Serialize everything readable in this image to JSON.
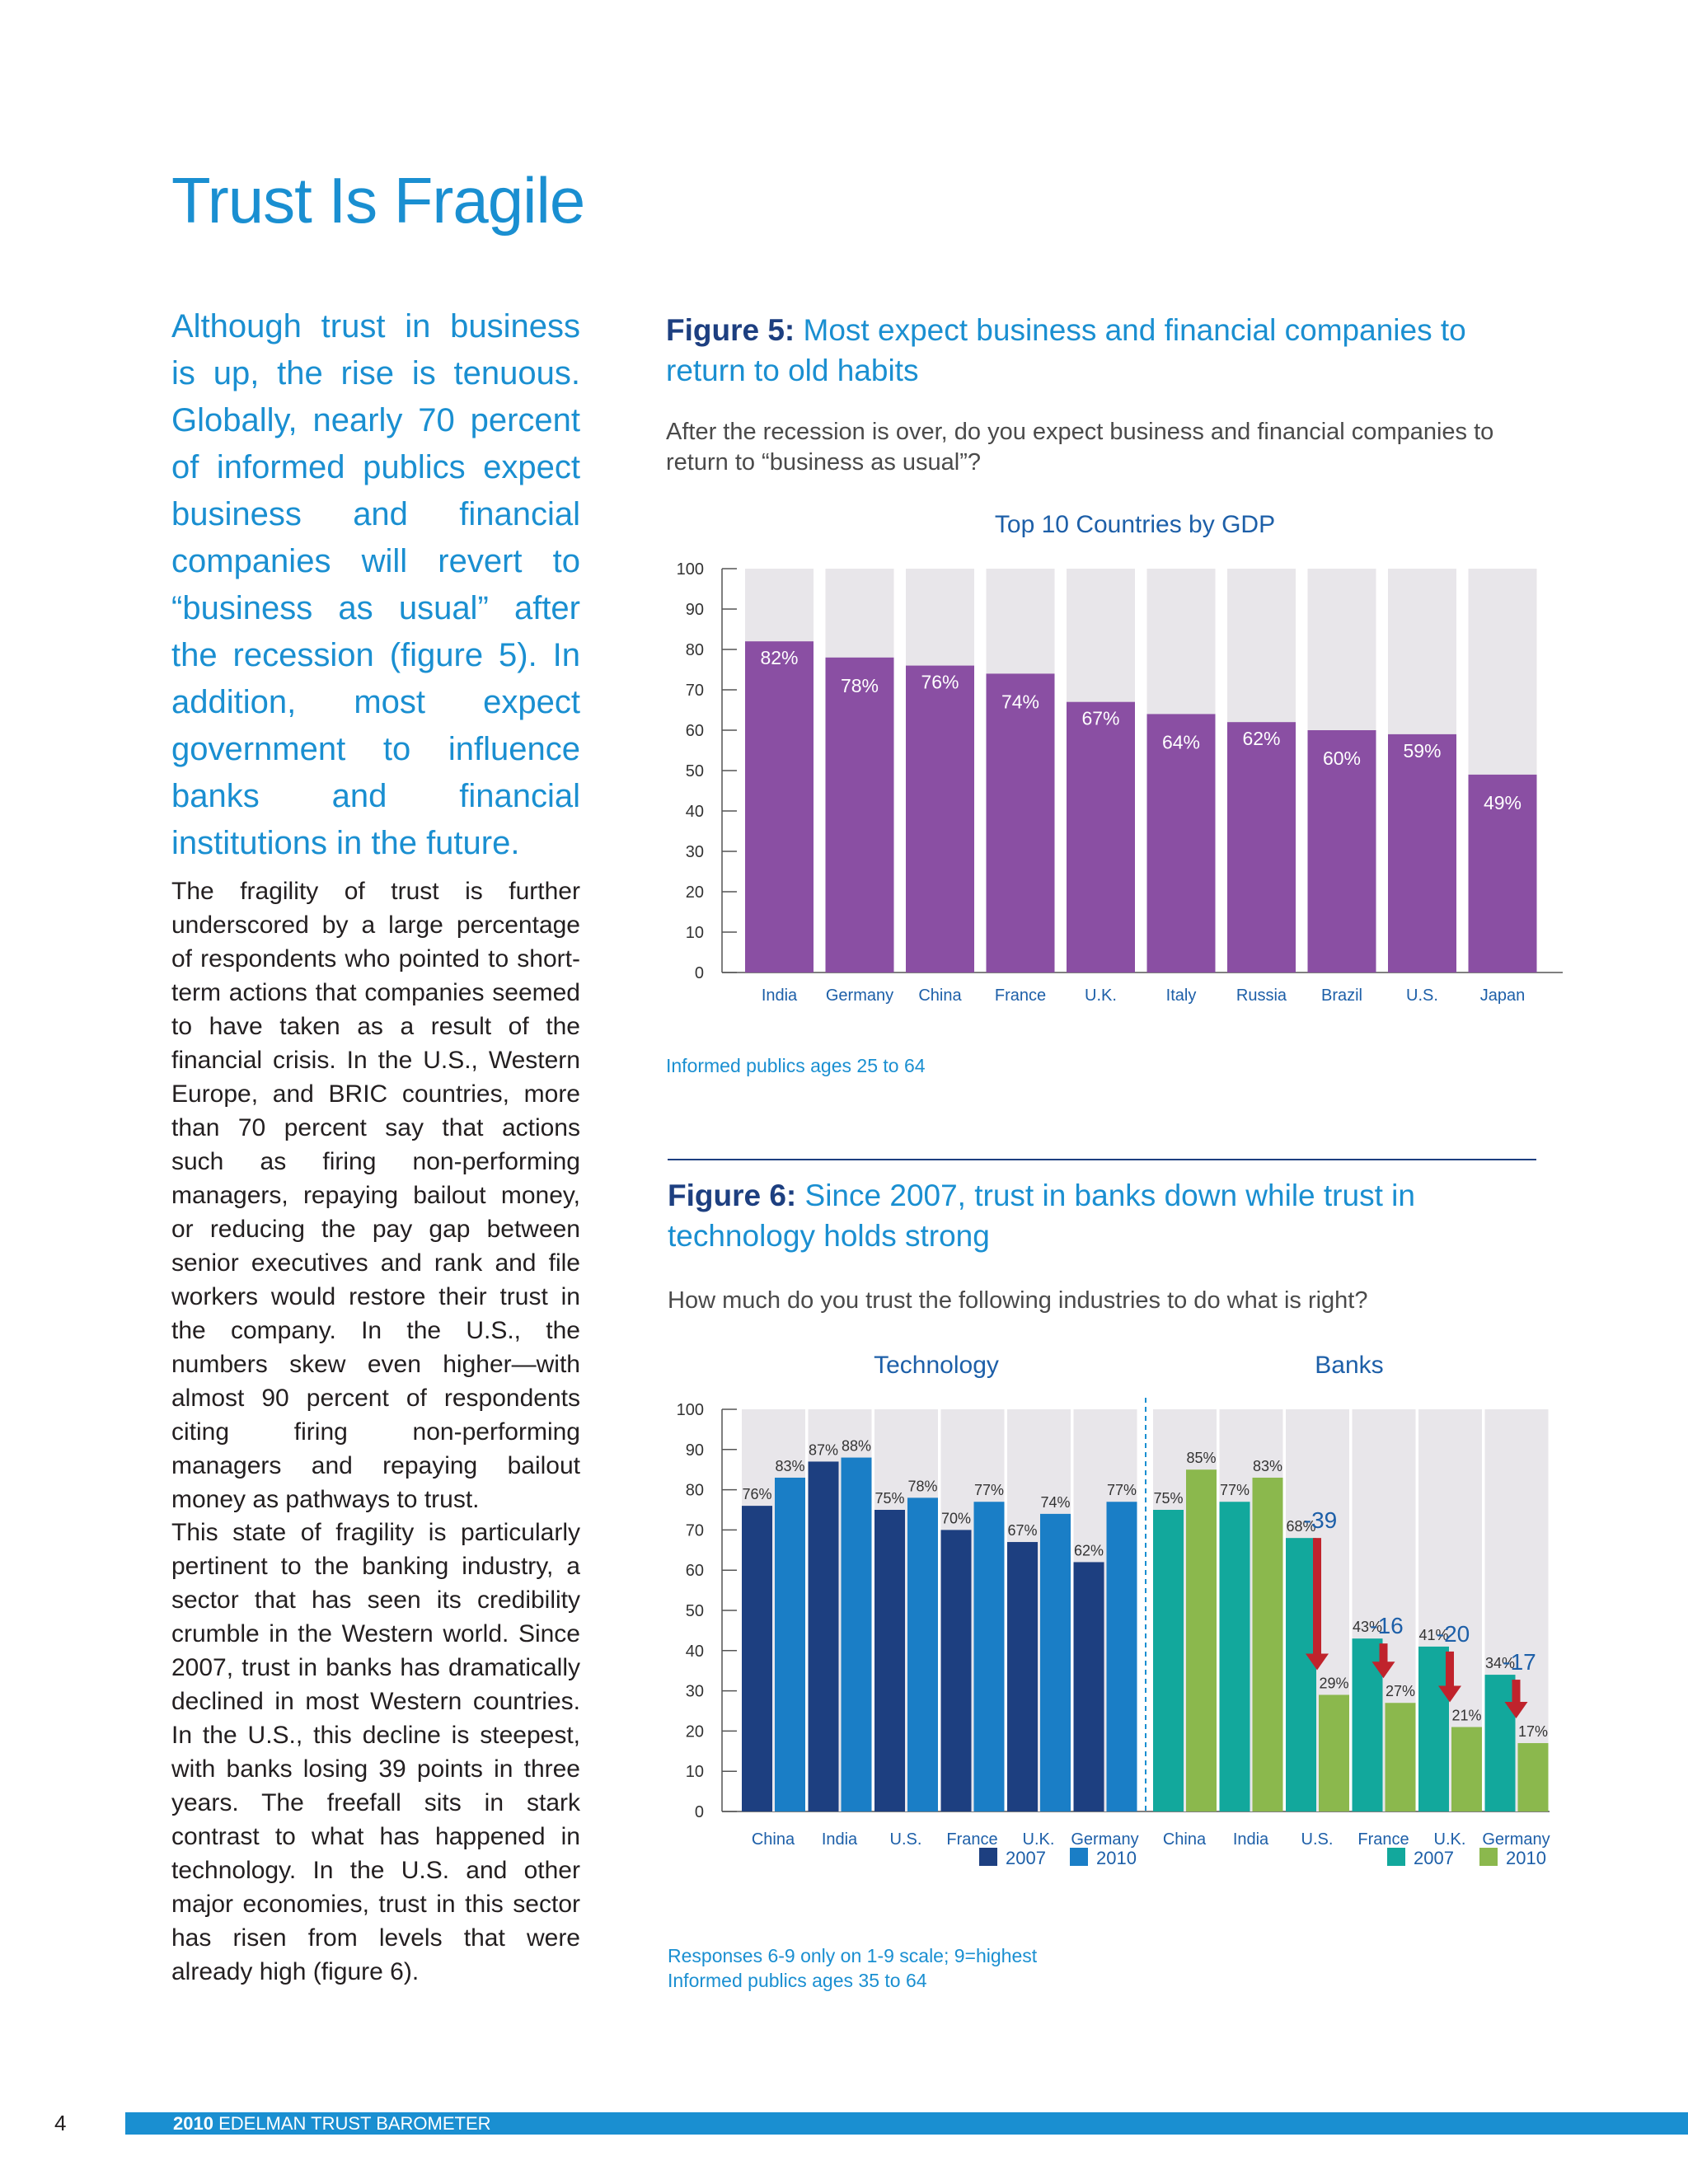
{
  "page": {
    "title": "Trust Is Fragile",
    "lead": "Although trust in business is up, the rise is tenuous. Globally, nearly 70 percent of informed publics expect business and financial companies will revert to “business as usual” after the recession (figure 5). In addition, most expect government to influence banks and financial institutions in the future.",
    "body1": "The fragility of trust is further underscored by a large percentage of respondents who pointed to short-term actions that companies seemed to have taken as a result of the financial crisis. In the U.S., Western Europe, and BRIC countries, more than 70 percent say that actions such as firing non-performing managers, repaying bailout money, or reducing the pay gap between senior executives and rank and file workers would restore their trust in the company. In the U.S., the numbers skew even higher—with almost 90 percent of respondents citing firing non-performing managers and repaying bailout money as pathways to trust.",
    "body2": "This state of fragility is particularly pertinent to the banking industry, a sector that has seen its credibility crumble in the Western world. Since 2007, trust in banks has dramatically declined in most Western countries. In the U.S., this decline is steepest, with banks losing 39 points in three years. The freefall sits in stark contrast to what has happened in technology. In the U.S. and other major economies, trust in this sector has risen from levels that were already high (figure 6).",
    "page_number": "4",
    "footer_year": "2010",
    "footer_text": "EDELMAN TRUST BAROMETER"
  },
  "fig5": {
    "label": "Figure 5:",
    "title": "Most expect business and financial companies to return to old habits",
    "question": "After the recession is over, do you expect business and financial companies to return to “business as usual”?",
    "note": "Informed publics ages 25 to 64"
  },
  "fig6": {
    "label": "Figure 6:",
    "title": "Since 2007, trust in banks down while trust in technology holds strong",
    "question": "How much do you trust the following industries to do what is right?",
    "note1": "Responses 6-9 only on 1-9 scale; 9=highest",
    "note2": "Informed publics ages 35 to 64"
  },
  "chart_data": [
    {
      "type": "bar",
      "title": "Top 10 Countries by GDP",
      "categories": [
        "India",
        "Germany",
        "China",
        "France",
        "U.K.",
        "Italy",
        "Russia",
        "Brazil",
        "U.S.",
        "Japan"
      ],
      "values": [
        82,
        78,
        76,
        74,
        67,
        64,
        62,
        60,
        59,
        49
      ],
      "value_labels": [
        "82%",
        "78%",
        "76%",
        "74%",
        "67%",
        "64%",
        "62%",
        "60%",
        "59%",
        "49%"
      ],
      "yticks": [
        "0",
        "10",
        "20",
        "30",
        "40",
        "50",
        "60",
        "70",
        "80",
        "90",
        "100"
      ],
      "ylim": [
        0,
        100
      ],
      "bar_color": "#8a4fa3",
      "background_color": "#e8e6ea"
    },
    {
      "type": "bar",
      "groups": [
        {
          "title": "Technology",
          "categories": [
            "China",
            "India",
            "U.S.",
            "France",
            "U.K.",
            "Germany"
          ],
          "series": [
            {
              "name": "2007",
              "color": "#1d3f80",
              "values": [
                76,
                87,
                75,
                70,
                67,
                62
              ],
              "labels": [
                "76%",
                "87%",
                "75%",
                "70%",
                "67%",
                "62%"
              ]
            },
            {
              "name": "2010",
              "color": "#1a7ec6",
              "values": [
                83,
                88,
                78,
                77,
                74,
                77
              ],
              "labels": [
                "83%",
                "88%",
                "78%",
                "77%",
                "74%",
                "77%"
              ]
            }
          ]
        },
        {
          "title": "Banks",
          "categories": [
            "China",
            "India",
            "U.S.",
            "France",
            "U.K.",
            "Germany"
          ],
          "series": [
            {
              "name": "2007",
              "color": "#12a89c",
              "values": [
                75,
                77,
                68,
                43,
                41,
                34
              ],
              "labels": [
                "75%",
                "77%",
                "68%",
                "43%",
                "41%",
                "34%"
              ]
            },
            {
              "name": "2010",
              "color": "#8bb84d",
              "values": [
                85,
                83,
                29,
                27,
                21,
                17
              ],
              "labels": [
                "85%",
                "83%",
                "29%",
                "27%",
                "21%",
                "17%"
              ]
            }
          ],
          "annotations": [
            {
              "category": "U.S.",
              "text": "-39"
            },
            {
              "category": "France",
              "text": "-16"
            },
            {
              "category": "U.K.",
              "text": "-20"
            },
            {
              "category": "Germany",
              "text": "-17"
            }
          ]
        }
      ],
      "yticks": [
        "0",
        "10",
        "20",
        "30",
        "40",
        "50",
        "60",
        "70",
        "80",
        "90",
        "100"
      ],
      "ylim": [
        0,
        100
      ],
      "arrow_color": "#c0232c",
      "background_color": "#e8e6ea"
    }
  ]
}
